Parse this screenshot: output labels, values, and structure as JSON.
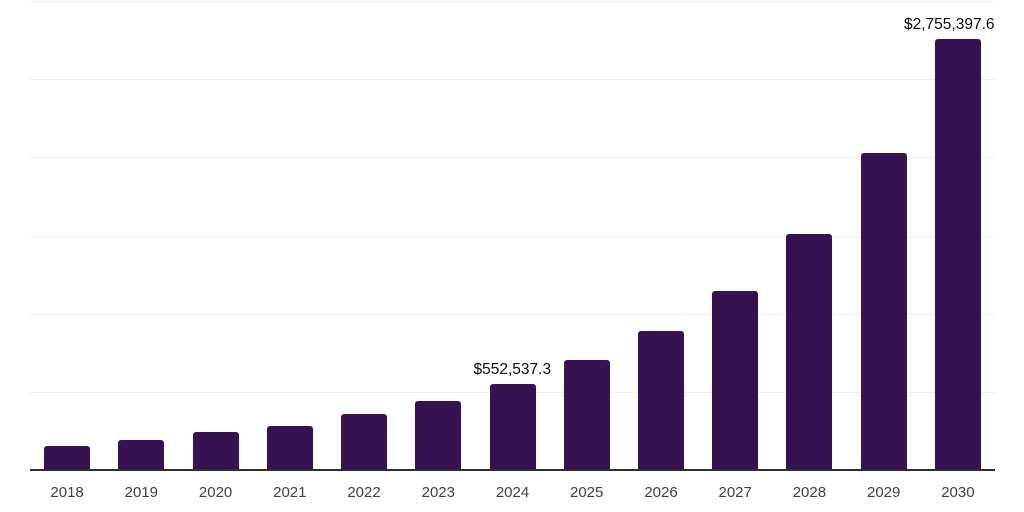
{
  "chart_data": {
    "type": "bar",
    "categories": [
      "2018",
      "2019",
      "2020",
      "2021",
      "2022",
      "2023",
      "2024",
      "2025",
      "2026",
      "2027",
      "2028",
      "2029",
      "2030"
    ],
    "values": [
      155000,
      190000,
      241000,
      281000,
      360000,
      441000,
      552537.3,
      705000,
      890000,
      1146000,
      1513000,
      2028000,
      2755397.6
    ],
    "data_labels": [
      {
        "category": "2024",
        "text": "$552,537.3"
      },
      {
        "category": "2030",
        "text": "$2,755,397.6"
      }
    ],
    "title": "",
    "xlabel": "",
    "ylabel": "",
    "ylim": [
      0,
      3000000
    ],
    "gridline_interval": 500000,
    "grid": true,
    "legend": false,
    "colors": {
      "bar": "#371253",
      "gridline": "#f0f0f1",
      "axis_line": "#2d2d2d",
      "tick_label": "#3f3f3f",
      "data_label": "#0a0a0a",
      "background": "#ffffff"
    }
  }
}
